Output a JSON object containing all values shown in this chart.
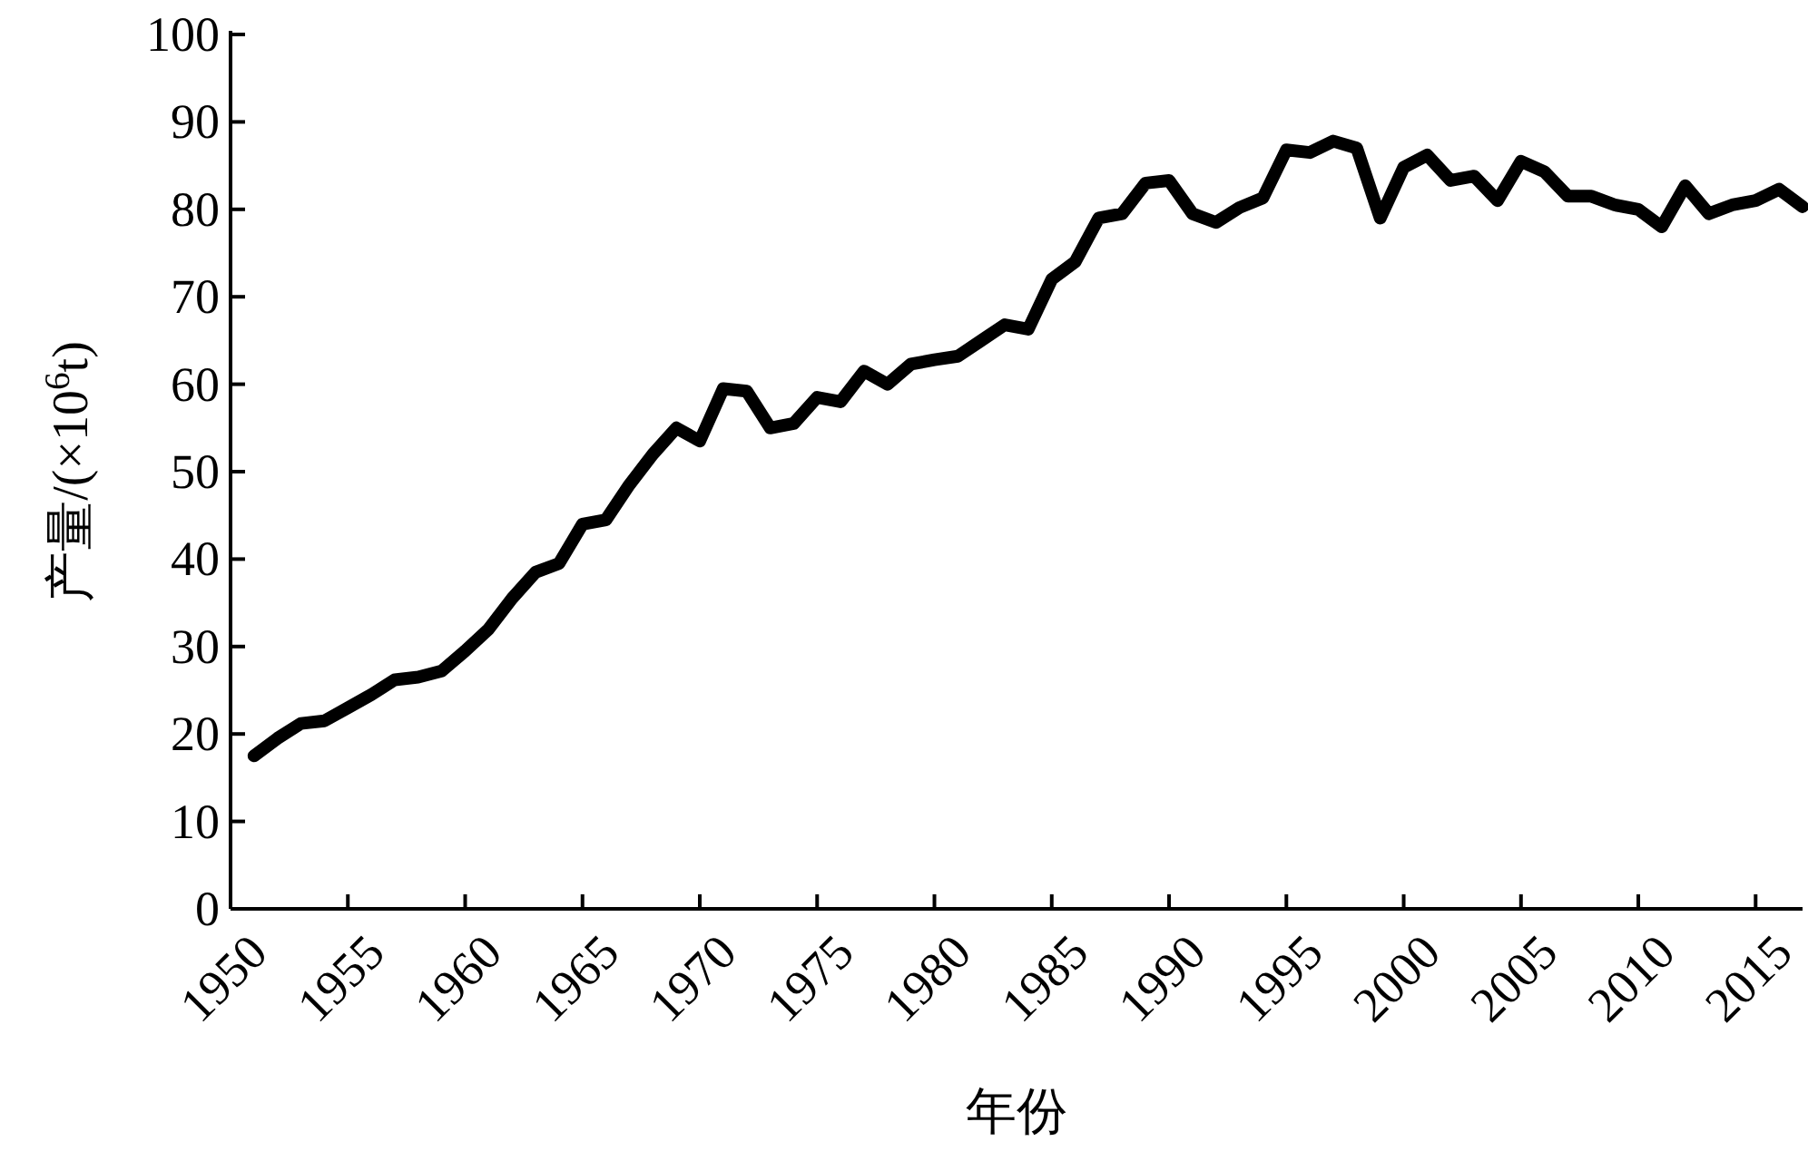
{
  "chart_data": {
    "type": "line",
    "xlabel": "年份",
    "ylabel": "产量/(×10$^{6}$t)",
    "x": [
      1951,
      1952,
      1953,
      1954,
      1955,
      1956,
      1957,
      1958,
      1959,
      1960,
      1961,
      1962,
      1963,
      1964,
      1965,
      1966,
      1967,
      1968,
      1969,
      1970,
      1971,
      1972,
      1973,
      1974,
      1975,
      1976,
      1977,
      1978,
      1979,
      1980,
      1981,
      1982,
      1983,
      1984,
      1985,
      1986,
      1987,
      1988,
      1989,
      1990,
      1991,
      1992,
      1993,
      1994,
      1995,
      1996,
      1997,
      1998,
      1999,
      2000,
      2001,
      2002,
      2003,
      2004,
      2005,
      2006,
      2007,
      2008,
      2009,
      2010,
      2011,
      2012,
      2013,
      2014,
      2015,
      2016,
      2017
    ],
    "values": [
      17.5,
      19.5,
      21.2,
      21.5,
      23,
      24.5,
      26.2,
      26.5,
      27.2,
      29.5,
      32,
      35.5,
      38.5,
      39.5,
      44,
      44.5,
      48.5,
      52,
      55,
      53.5,
      59.5,
      59.2,
      55,
      55.5,
      58.5,
      58,
      61.5,
      60,
      62.3,
      62.8,
      63.2,
      65,
      66.8,
      66.3,
      72,
      74,
      79,
      79.5,
      83,
      83.3,
      79.5,
      78.5,
      80.2,
      81.3,
      86.8,
      86.5,
      87.8,
      87,
      79,
      84.8,
      86.2,
      83.3,
      83.8,
      81,
      85.5,
      84.3,
      81.5,
      81.5,
      80.5,
      80,
      78,
      82.7,
      79.5,
      80.5,
      81,
      82.3,
      80.3
    ],
    "color": "#000000",
    "line_style": "solid",
    "marker": "none",
    "xlim": [
      1950,
      2017
    ],
    "xticks": [
      1950,
      1955,
      1960,
      1965,
      1970,
      1975,
      1980,
      1985,
      1990,
      1995,
      2000,
      2005,
      2010,
      2015
    ],
    "ylim": [
      0,
      100
    ],
    "yticks": [
      0,
      10,
      20,
      30,
      40,
      50,
      60,
      70,
      80,
      90,
      100
    ]
  }
}
